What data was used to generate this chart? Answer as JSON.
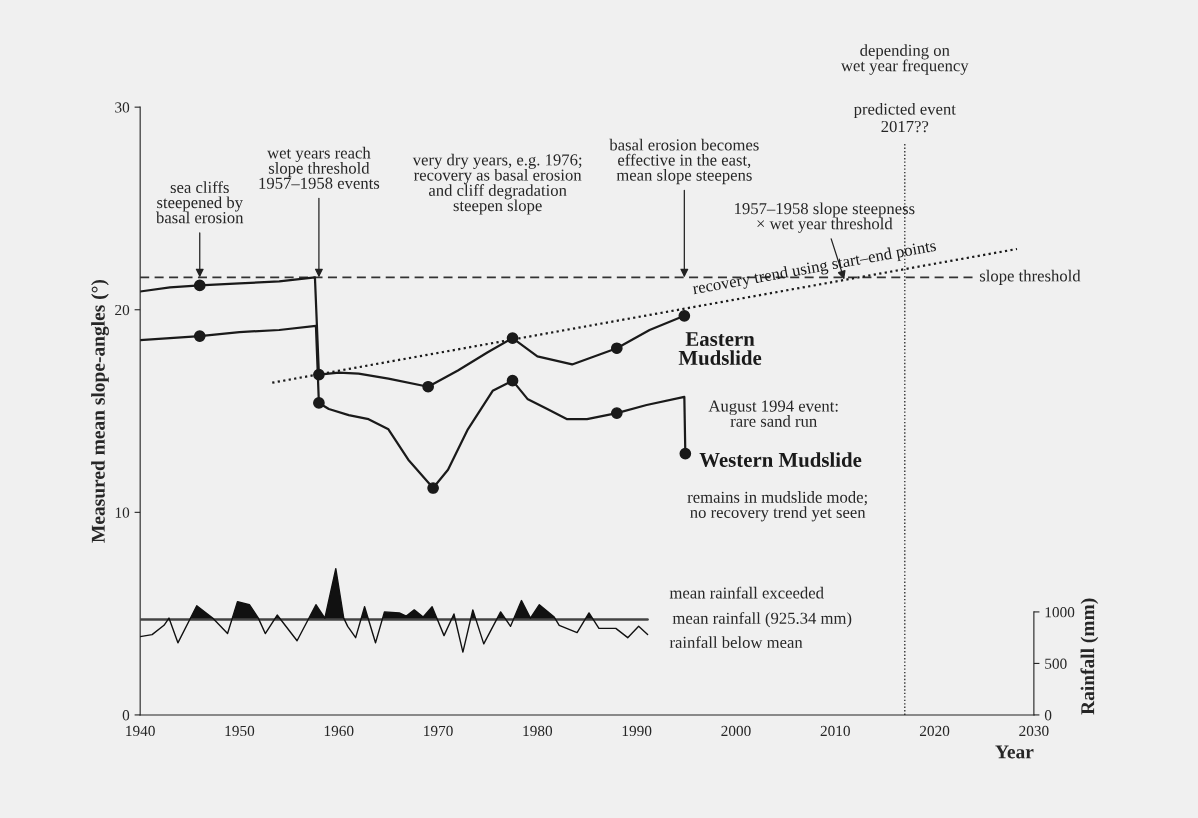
{
  "chart_data": {
    "type": "line",
    "xlabel": "Year",
    "ylabel": "Measured mean slope-angles (°)",
    "y2label": "Rainfall (mm)",
    "xlim": [
      1940,
      2030
    ],
    "xticks": [
      1940,
      1950,
      1960,
      1970,
      1980,
      1990,
      2000,
      2010,
      2020,
      2030
    ],
    "ylim": [
      0,
      30
    ],
    "yticks": [
      0,
      10,
      20,
      30
    ],
    "y2lim": [
      0,
      5900
    ],
    "y2ticks": [
      0,
      500,
      1000
    ],
    "grid": false,
    "series": [
      {
        "name": "Eastern\nMudslide",
        "color": "#1a1a1a",
        "marker": "none",
        "x": [
          1940,
          1943,
          1946,
          1950,
          1954,
          1957.6,
          1958,
          1960,
          1962,
          1965,
          1969,
          1972,
          1975,
          1977.5,
          1980,
          1983.5,
          1988,
          1991.3,
          1994.8
        ],
        "values": [
          20.9,
          21.1,
          21.2,
          21.3,
          21.4,
          21.6,
          16.8,
          16.9,
          16.85,
          16.6,
          16.2,
          17.0,
          17.9,
          18.6,
          17.7,
          17.3,
          18.1,
          19.0,
          19.7
        ]
      },
      {
        "name": "Western Mudslide",
        "color": "#1a1a1a",
        "marker": "none",
        "x": [
          1940,
          1943,
          1946,
          1950,
          1954,
          1957.7,
          1958,
          1959,
          1961,
          1963,
          1965,
          1967,
          1969.5,
          1971,
          1973,
          1975.5,
          1977.5,
          1979,
          1981,
          1983,
          1985,
          1988,
          1991,
          1994.8,
          1994.9
        ],
        "values": [
          18.5,
          18.6,
          18.7,
          18.9,
          19.0,
          19.2,
          15.4,
          15.1,
          14.8,
          14.6,
          14.1,
          12.6,
          11.2,
          12.1,
          14.1,
          16.0,
          16.5,
          15.6,
          15.1,
          14.6,
          14.6,
          14.9,
          15.3,
          15.7,
          12.9
        ]
      },
      {
        "type": "scatter",
        "color": "#1a1a1a",
        "marker": "circle",
        "x": [
          1946,
          1958,
          1969,
          1977.5,
          1988,
          1994.8
        ],
        "values": [
          21.2,
          16.8,
          16.2,
          18.6,
          18.1,
          19.7
        ]
      },
      {
        "type": "scatter",
        "color": "#1a1a1a",
        "marker": "circle",
        "x": [
          1946,
          1958,
          1969.5,
          1977.5,
          1988,
          1994.9
        ],
        "values": [
          18.7,
          15.4,
          11.2,
          16.5,
          14.9,
          12.9
        ]
      },
      {
        "name": "recovery trend using start–end points",
        "color": "#1a1a1a",
        "line_style": "dotted",
        "marker": "none",
        "x": [
          1953.3,
          2028.3
        ],
        "values": [
          16.4,
          23.0
        ]
      },
      {
        "axis": "y2",
        "color": "#111111",
        "marker": "none",
        "x": [
          1940.0,
          1941.2,
          1942.4,
          1942.9,
          1943.8,
          1945.7,
          1947.3,
          1948.8,
          1949.8,
          1951.0,
          1951.9,
          1952.6,
          1953.8,
          1955.8,
          1957.7,
          1958.6,
          1959.7,
          1960.5,
          1960.9,
          1961.7,
          1962.6,
          1963.7,
          1964.6,
          1966.1,
          1966.8,
          1967.6,
          1968.5,
          1969.4,
          1970.6,
          1971.6,
          1972.5,
          1973.5,
          1974.6,
          1976.3,
          1977.3,
          1978.4,
          1979.3,
          1980.2,
          1981.7,
          1982.2,
          1984.0,
          1985.2,
          1986.2,
          1987.9,
          1989.1,
          1990.2,
          1991.1
        ],
        "values": [
          760,
          780,
          870,
          940,
          700,
          1060,
          940,
          790,
          1100,
          1070,
          940,
          790,
          970,
          720,
          1070,
          940,
          1420,
          940,
          860,
          750,
          1050,
          700,
          1000,
          990,
          960,
          1020,
          950,
          1050,
          770,
          980,
          610,
          1020,
          690,
          1000,
          860,
          1110,
          940,
          1070,
          950,
          870,
          800,
          990,
          840,
          840,
          750,
          860,
          780
        ]
      }
    ],
    "ref_lines": [
      {
        "axis": "y",
        "value": 21.6,
        "label": "slope threshold",
        "line_style": "dashed",
        "color": "#333333"
      },
      {
        "axis": "x",
        "value": 2017,
        "label": "predicted event\n2017??",
        "line_style": "dotted",
        "color": "#333333"
      },
      {
        "axis": "y2",
        "value": 925.34,
        "label": "mean rainfall (925.34 mm)",
        "line_style": "solid",
        "color": "#444444"
      }
    ],
    "annotations": [
      {
        "text": "sea cliffs\nsteepened by\nbasal erosion",
        "x": 1946,
        "y": 21.6
      },
      {
        "text": "wet years reach\nslope threshold\n1957–1958 events",
        "x": 1958,
        "y": 21.6
      },
      "very dry years, e.g. 1976;\nrecovery as basal erosion\nand cliff degradation\nsteepen slope",
      {
        "text": "basal erosion becomes\neffective in the east,\nmean slope steepens",
        "x": 1994.8,
        "y": 21.6
      },
      {
        "text": "1957–1958 slope steepness\n× wet year threshold",
        "x": 2010.9,
        "y": 21.5
      },
      "depending on\nwet year frequency",
      {
        "text": "August 1994 event:\nrare sand run",
        "x": 1994.8,
        "y": 15.7
      },
      {
        "text": "remains in mudslide mode;\nno recovery trend yet seen",
        "x": 1994.9,
        "y": 12.9
      },
      "mean rainfall exceeded",
      "rainfall below mean"
    ]
  }
}
